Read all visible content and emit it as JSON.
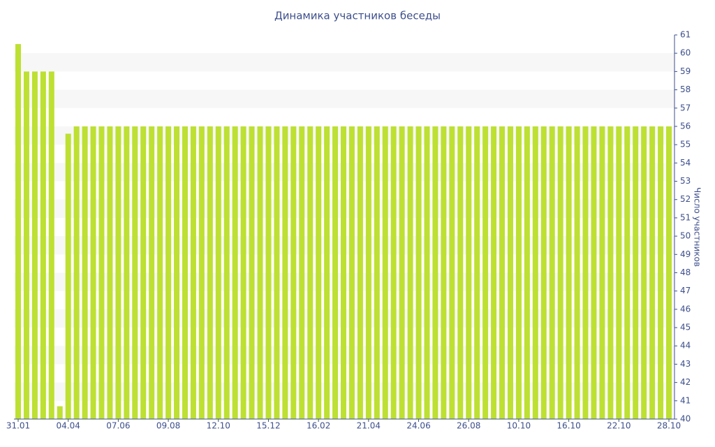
{
  "chart_data": {
    "type": "bar",
    "title": "Динамика участников беседы",
    "y_label": "Число участников",
    "categories": [
      "31.01",
      null,
      null,
      null,
      null,
      null,
      "04.04",
      null,
      null,
      null,
      null,
      null,
      "07.06",
      null,
      null,
      null,
      null,
      null,
      "09.08",
      null,
      null,
      null,
      null,
      null,
      "12.10",
      null,
      null,
      null,
      null,
      null,
      "15.12",
      null,
      null,
      null,
      null,
      null,
      "16.02",
      null,
      null,
      null,
      null,
      null,
      "21.04",
      null,
      null,
      null,
      null,
      null,
      "24.06",
      null,
      null,
      null,
      null,
      null,
      "26.08",
      null,
      null,
      null,
      null,
      null,
      "10.10",
      null,
      null,
      null,
      null,
      null,
      "16.10",
      null,
      null,
      null,
      null,
      null,
      "22.10",
      null,
      null,
      null,
      null,
      null,
      "28.10"
    ],
    "values": [
      60.5,
      59,
      59,
      59,
      59,
      40.7,
      55.6,
      56,
      56,
      56,
      56,
      56,
      56,
      56,
      56,
      56,
      56,
      56,
      56,
      56,
      56,
      56,
      56,
      56,
      56,
      56,
      56,
      56,
      56,
      56,
      56,
      56,
      56,
      56,
      56,
      56,
      56,
      56,
      56,
      56,
      56,
      56,
      56,
      56,
      56,
      56,
      56,
      56,
      56,
      56,
      56,
      56,
      56,
      56,
      56,
      56,
      56,
      56,
      56,
      56,
      56,
      56,
      56,
      56,
      56,
      56,
      56,
      56,
      56,
      56,
      56,
      56,
      56,
      56,
      56,
      56,
      56,
      56,
      56
    ],
    "color": "#bde032",
    "ylim": [
      40,
      61
    ],
    "yticks": [
      40,
      41,
      42,
      43,
      44,
      45,
      46,
      47,
      48,
      49,
      50,
      51,
      52,
      53,
      54,
      55,
      56,
      57,
      58,
      59,
      60,
      61
    ],
    "grid": true,
    "y_axis_side": "right"
  }
}
